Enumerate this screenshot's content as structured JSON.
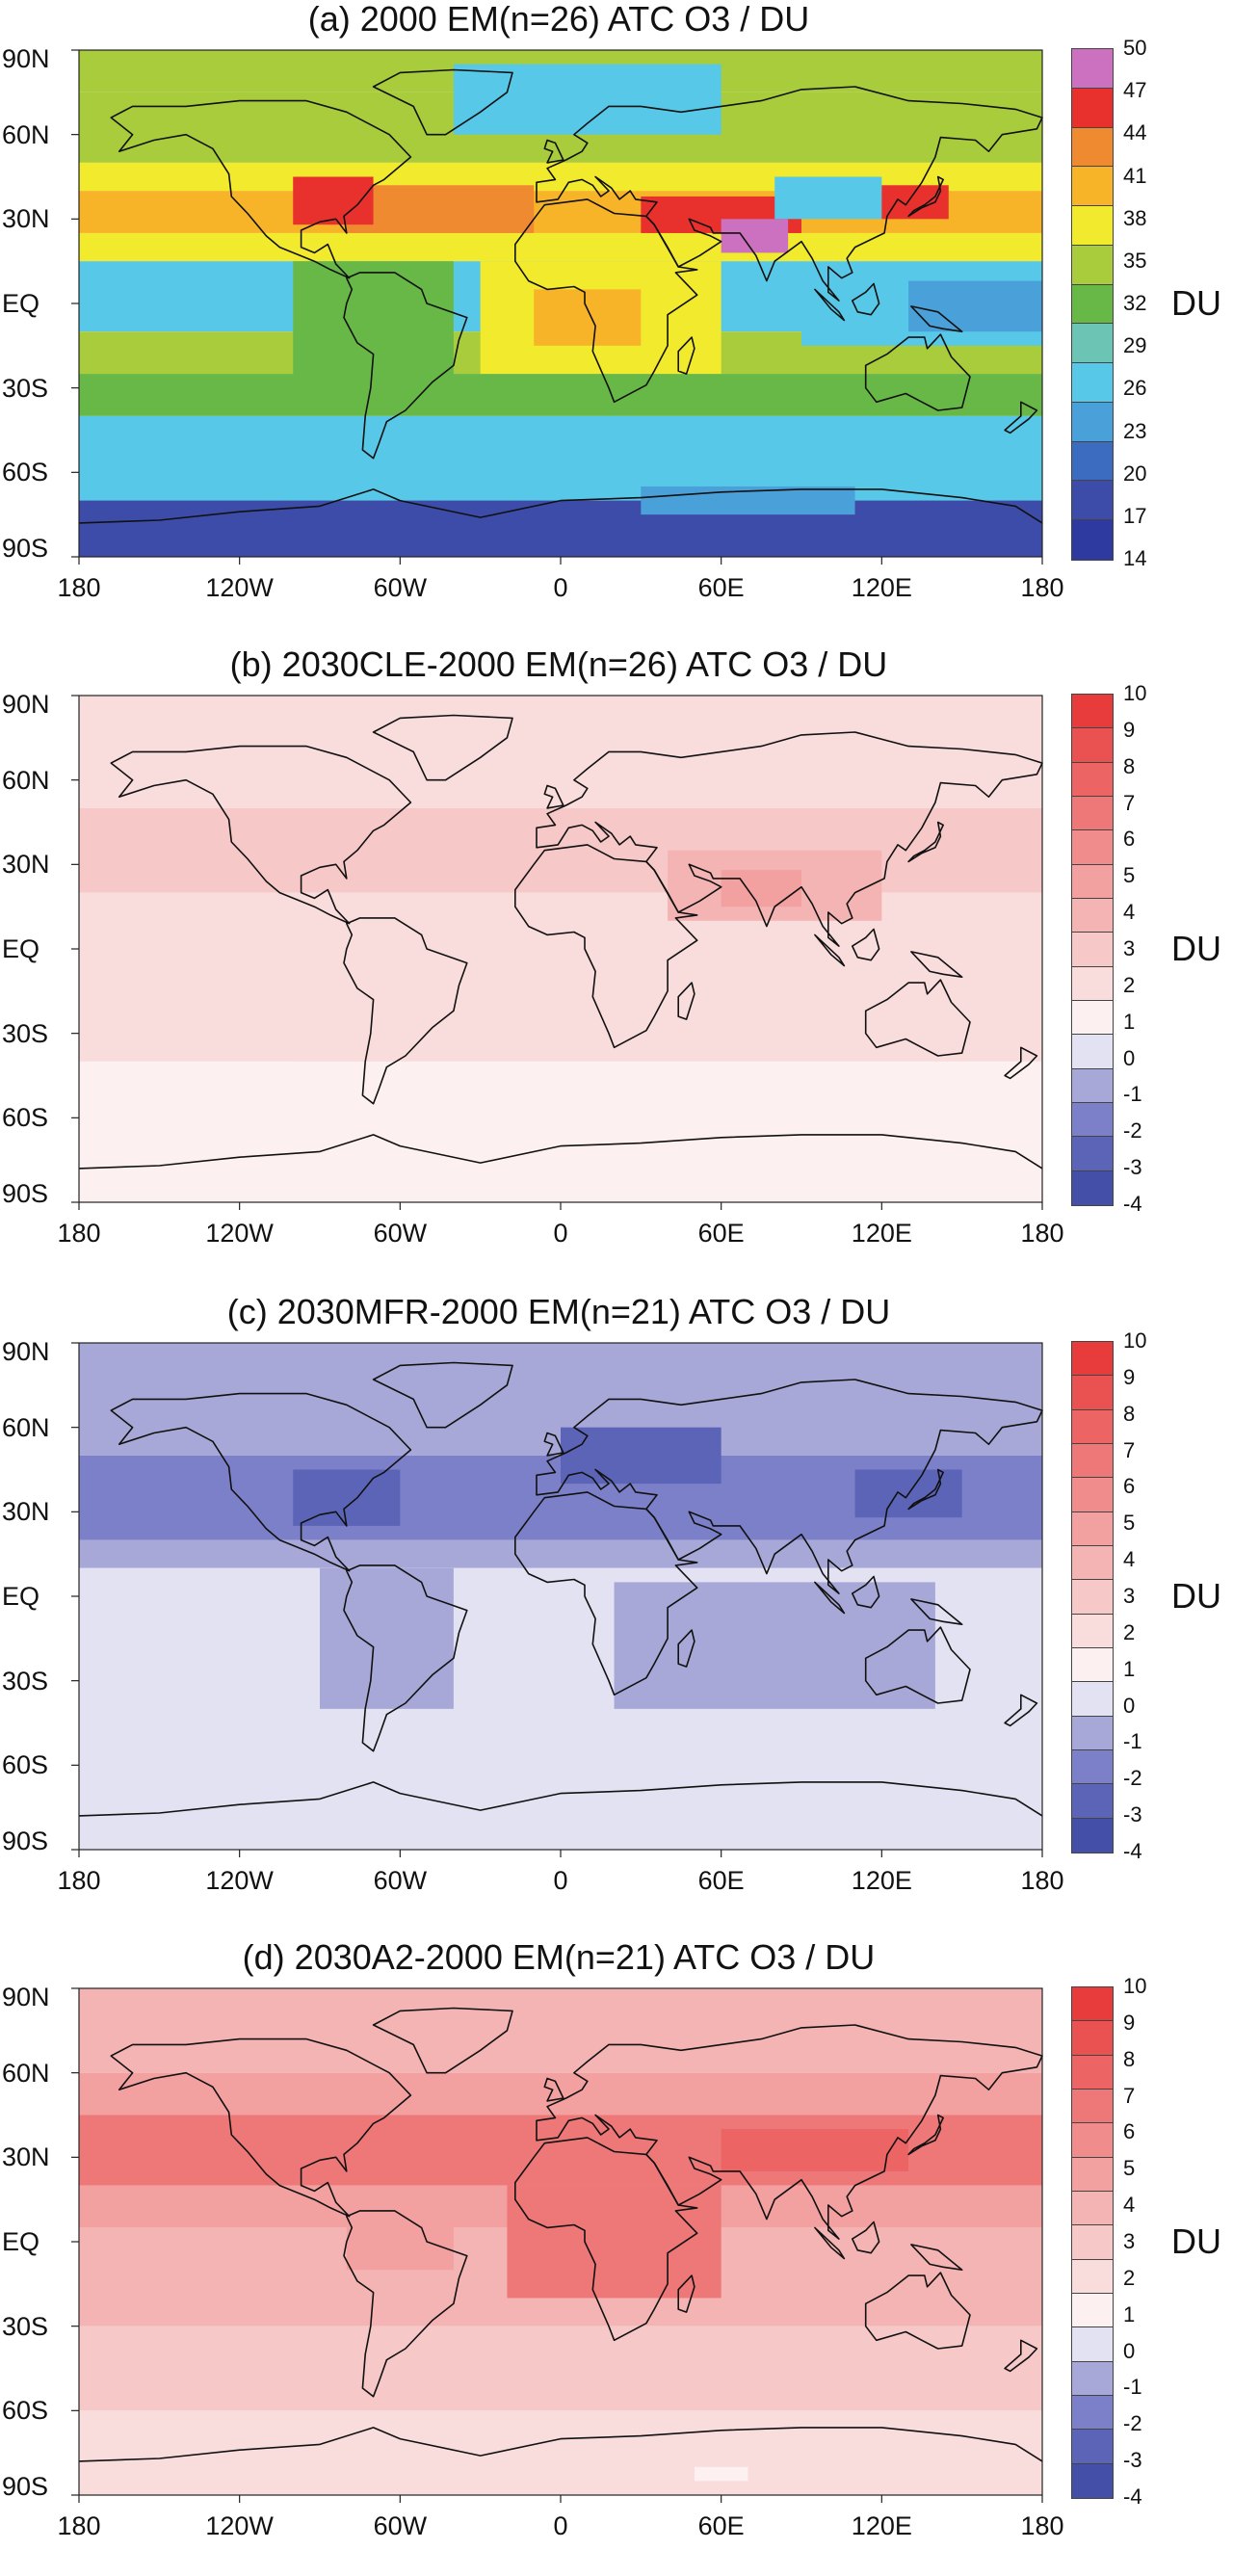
{
  "lat_labels": [
    "90N",
    "60N",
    "30N",
    "EQ",
    "30S",
    "60S",
    "90S"
  ],
  "lon_labels": [
    "180",
    "120W",
    "60W",
    "0",
    "60E",
    "120E",
    "180"
  ],
  "unit_label": "DU",
  "panels": [
    {
      "title": "(a) 2000 EM(n=26) ATC O3 / DU",
      "levels": [
        "50",
        "47",
        "44",
        "41",
        "38",
        "35",
        "32",
        "29",
        "26",
        "23",
        "20",
        "17",
        "14"
      ],
      "colors": [
        "#cc70c0",
        "#e8302c",
        "#f08a30",
        "#f8b428",
        "#f2ea2c",
        "#a8cc3c",
        "#68b848",
        "#6cc4b4",
        "#58c8e8",
        "#4aa0d8",
        "#3c6cc0",
        "#3c4ca8",
        "#2e3aa0"
      ],
      "lat_bands": [
        {
          "lat": [
            75,
            90
          ],
          "color": "#a8cc3c"
        },
        {
          "lat": [
            50,
            75
          ],
          "color": "#a8cc3c"
        },
        {
          "lat": [
            40,
            50
          ],
          "color": "#f2ea2c"
        },
        {
          "lat": [
            25,
            40
          ],
          "color": "#f8b428"
        },
        {
          "lat": [
            15,
            25
          ],
          "color": "#f2ea2c"
        },
        {
          "lat": [
            -10,
            15
          ],
          "color": "#58c8e8"
        },
        {
          "lat": [
            -25,
            -10
          ],
          "color": "#a8cc3c"
        },
        {
          "lat": [
            -40,
            -25
          ],
          "color": "#68b848"
        },
        {
          "lat": [
            -70,
            -40
          ],
          "color": "#58c8e8"
        },
        {
          "lat": [
            -90,
            -70
          ],
          "color": "#3c4ca8"
        }
      ],
      "patches": [
        {
          "lon": [
            -100,
            -40
          ],
          "lat": [
            -30,
            15
          ],
          "color": "#68b848"
        },
        {
          "lon": [
            -30,
            60
          ],
          "lat": [
            -25,
            15
          ],
          "color": "#f2ea2c"
        },
        {
          "lon": [
            -10,
            30
          ],
          "lat": [
            -15,
            5
          ],
          "color": "#f8b428"
        },
        {
          "lon": [
            -80,
            -10
          ],
          "lat": [
            25,
            42
          ],
          "color": "#f08a30"
        },
        {
          "lon": [
            -100,
            -70
          ],
          "lat": [
            28,
            45
          ],
          "color": "#e8302c"
        },
        {
          "lon": [
            30,
            90
          ],
          "lat": [
            25,
            38
          ],
          "color": "#e8302c"
        },
        {
          "lon": [
            80,
            120
          ],
          "lat": [
            30,
            45
          ],
          "color": "#58c8e8"
        },
        {
          "lon": [
            60,
            85
          ],
          "lat": [
            18,
            30
          ],
          "color": "#cc70c0"
        },
        {
          "lon": [
            120,
            145
          ],
          "lat": [
            30,
            42
          ],
          "color": "#e8302c"
        },
        {
          "lon": [
            -40,
            60
          ],
          "lat": [
            60,
            85
          ],
          "color": "#58c8e8"
        },
        {
          "lon": [
            90,
            180
          ],
          "lat": [
            -15,
            12
          ],
          "color": "#58c8e8"
        },
        {
          "lon": [
            130,
            180
          ],
          "lat": [
            -10,
            8
          ],
          "color": "#4aa0d8"
        },
        {
          "lon": [
            30,
            110
          ],
          "lat": [
            -75,
            -65
          ],
          "color": "#4aa0d8"
        }
      ]
    },
    {
      "title": "(b) 2030CLE-2000 EM(n=26) ATC O3 / DU",
      "levels": [
        "10",
        "9",
        "8",
        "7",
        "6",
        "5",
        "4",
        "3",
        "2",
        "1",
        "0",
        "-1",
        "-2",
        "-3",
        "-4"
      ],
      "colors": [
        "#e83c3c",
        "#ea5252",
        "#ec6464",
        "#ee7878",
        "#f08c8c",
        "#f2a0a0",
        "#f4b4b4",
        "#f6c8c8",
        "#f9dcdc",
        "#fdf0f0",
        "#e2e2f2",
        "#a8a8d8",
        "#7c80c8",
        "#5c64b8",
        "#4450a8"
      ],
      "lat_bands": [
        {
          "lat": [
            50,
            90
          ],
          "color": "#f9dcdc"
        },
        {
          "lat": [
            20,
            50
          ],
          "color": "#f6c8c8"
        },
        {
          "lat": [
            -40,
            20
          ],
          "color": "#f9dcdc"
        },
        {
          "lat": [
            -90,
            -40
          ],
          "color": "#fdf0f0"
        }
      ],
      "patches": [
        {
          "lon": [
            40,
            120
          ],
          "lat": [
            10,
            35
          ],
          "color": "#f4b4b4"
        },
        {
          "lon": [
            60,
            90
          ],
          "lat": [
            15,
            28
          ],
          "color": "#f2a0a0"
        },
        {
          "lon": [
            -100,
            -60
          ],
          "lat": [
            -40,
            -10
          ],
          "color": "#f9dcdc"
        }
      ]
    },
    {
      "title": "(c) 2030MFR-2000 EM(n=21) ATC O3 / DU",
      "levels": [
        "10",
        "9",
        "8",
        "7",
        "6",
        "5",
        "4",
        "3",
        "2",
        "1",
        "0",
        "-1",
        "-2",
        "-3",
        "-4"
      ],
      "colors": [
        "#e83c3c",
        "#ea5252",
        "#ec6464",
        "#ee7878",
        "#f08c8c",
        "#f2a0a0",
        "#f4b4b4",
        "#f6c8c8",
        "#f9dcdc",
        "#fdf0f0",
        "#e2e2f2",
        "#a8a8d8",
        "#7c80c8",
        "#5c64b8",
        "#4450a8"
      ],
      "lat_bands": [
        {
          "lat": [
            50,
            90
          ],
          "color": "#a8a8d8"
        },
        {
          "lat": [
            20,
            50
          ],
          "color": "#7c80c8"
        },
        {
          "lat": [
            10,
            20
          ],
          "color": "#a8a8d8"
        },
        {
          "lat": [
            -90,
            10
          ],
          "color": "#e2e2f2"
        }
      ],
      "patches": [
        {
          "lon": [
            -90,
            -40
          ],
          "lat": [
            -40,
            10
          ],
          "color": "#a8a8d8"
        },
        {
          "lon": [
            20,
            140
          ],
          "lat": [
            -40,
            5
          ],
          "color": "#a8a8d8"
        },
        {
          "lon": [
            -100,
            -60
          ],
          "lat": [
            25,
            45
          ],
          "color": "#5c64b8"
        },
        {
          "lon": [
            0,
            60
          ],
          "lat": [
            40,
            60
          ],
          "color": "#5c64b8"
        },
        {
          "lon": [
            110,
            150
          ],
          "lat": [
            28,
            45
          ],
          "color": "#5c64b8"
        }
      ]
    },
    {
      "title": "(d) 2030A2-2000 EM(n=21) ATC O3 / DU",
      "levels": [
        "10",
        "9",
        "8",
        "7",
        "6",
        "5",
        "4",
        "3",
        "2",
        "1",
        "0",
        "-1",
        "-2",
        "-3",
        "-4"
      ],
      "colors": [
        "#e83c3c",
        "#ea5252",
        "#ec6464",
        "#ee7878",
        "#f08c8c",
        "#f2a0a0",
        "#f4b4b4",
        "#f6c8c8",
        "#f9dcdc",
        "#fdf0f0",
        "#e2e2f2",
        "#a8a8d8",
        "#7c80c8",
        "#5c64b8",
        "#4450a8"
      ],
      "lat_bands": [
        {
          "lat": [
            60,
            90
          ],
          "color": "#f4b4b4"
        },
        {
          "lat": [
            45,
            60
          ],
          "color": "#f2a0a0"
        },
        {
          "lat": [
            20,
            45
          ],
          "color": "#ee7878"
        },
        {
          "lat": [
            5,
            20
          ],
          "color": "#f2a0a0"
        },
        {
          "lat": [
            -30,
            5
          ],
          "color": "#f4b4b4"
        },
        {
          "lat": [
            -60,
            -30
          ],
          "color": "#f6c8c8"
        },
        {
          "lat": [
            -90,
            -60
          ],
          "color": "#f9dcdc"
        }
      ],
      "patches": [
        {
          "lon": [
            -20,
            60
          ],
          "lat": [
            -20,
            20
          ],
          "color": "#ee7878"
        },
        {
          "lon": [
            60,
            130
          ],
          "lat": [
            25,
            40
          ],
          "color": "#ec6464"
        },
        {
          "lon": [
            -80,
            -40
          ],
          "lat": [
            -10,
            10
          ],
          "color": "#f2a0a0"
        },
        {
          "lon": [
            50,
            70
          ],
          "lat": [
            -85,
            -80
          ],
          "color": "#fdf0f0"
        }
      ]
    }
  ]
}
